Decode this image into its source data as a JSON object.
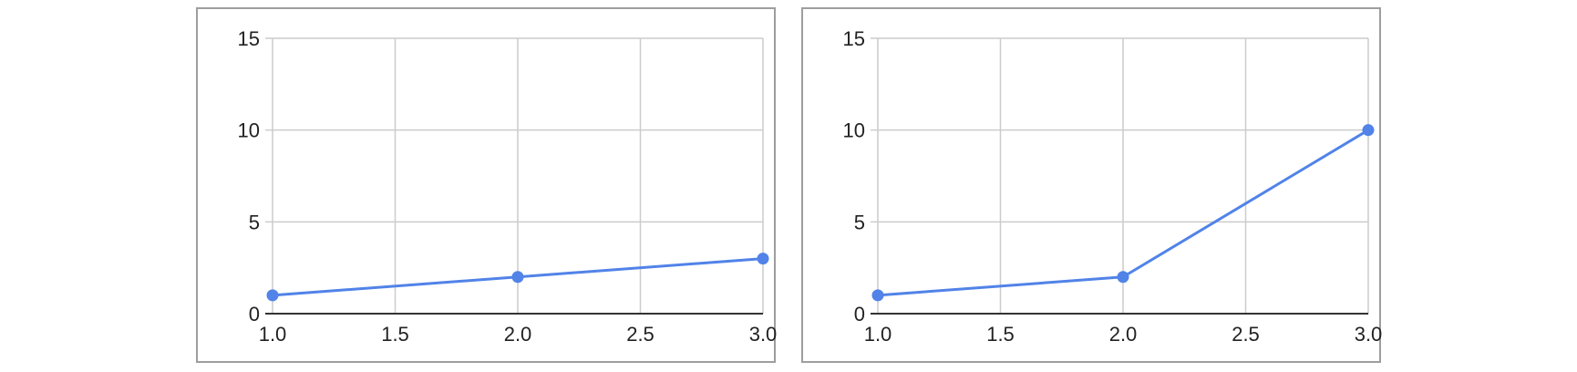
{
  "chart_data": [
    {
      "type": "line",
      "title": "",
      "xlabel": "",
      "ylabel": "",
      "xlim": [
        1.0,
        3.0
      ],
      "ylim": [
        0,
        15
      ],
      "xticks": [
        "1.0",
        "1.5",
        "2.0",
        "2.5",
        "3.0"
      ],
      "yticks": [
        "0",
        "5",
        "10",
        "15"
      ],
      "grid": true,
      "color": "#5183e8",
      "series": [
        {
          "x": [
            1.0,
            2.0,
            3.0
          ],
          "y": [
            1,
            2,
            3
          ]
        }
      ]
    },
    {
      "type": "line",
      "title": "",
      "xlabel": "",
      "ylabel": "",
      "xlim": [
        1.0,
        3.0
      ],
      "ylim": [
        0,
        15
      ],
      "xticks": [
        "1.0",
        "1.5",
        "2.0",
        "2.5",
        "3.0"
      ],
      "yticks": [
        "0",
        "5",
        "10",
        "15"
      ],
      "grid": true,
      "color": "#5183e8",
      "series": [
        {
          "x": [
            1.0,
            2.0,
            3.0
          ],
          "y": [
            1,
            2,
            10
          ]
        }
      ]
    }
  ]
}
